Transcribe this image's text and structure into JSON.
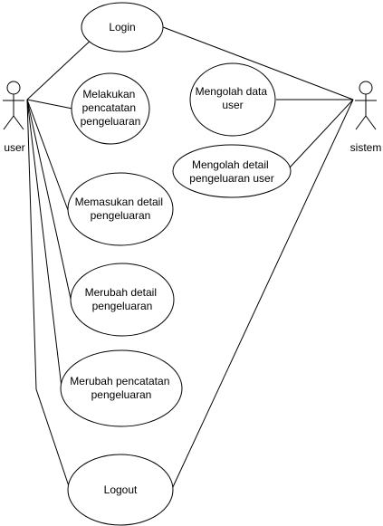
{
  "diagram": {
    "actors": {
      "user": {
        "label": "user"
      },
      "sistem": {
        "label": "sistem"
      }
    },
    "use_cases": {
      "login": {
        "lines": [
          "Login"
        ]
      },
      "melakukan": {
        "lines": [
          "Melakukan",
          "pencatatan",
          "pengeluaran"
        ]
      },
      "mengolah_data": {
        "lines": [
          "Mengolah data",
          "user"
        ]
      },
      "mengolah_detail": {
        "lines": [
          "Mengolah detail",
          "pengeluaran user"
        ]
      },
      "memasukan": {
        "lines": [
          "Memasukan detail",
          "pengeluaran"
        ]
      },
      "merubah_detail": {
        "lines": [
          "Merubah detail",
          "pengeluaran"
        ]
      },
      "merubah_pencatatan": {
        "lines": [
          "Merubah pencatatan",
          "pengeluaran"
        ]
      },
      "logout": {
        "lines": [
          "Logout"
        ]
      }
    },
    "associations": [
      [
        "user",
        "login"
      ],
      [
        "user",
        "melakukan"
      ],
      [
        "user",
        "memasukan"
      ],
      [
        "user",
        "merubah_detail"
      ],
      [
        "user",
        "merubah_pencatatan"
      ],
      [
        "user",
        "logout"
      ],
      [
        "sistem",
        "login"
      ],
      [
        "sistem",
        "mengolah_data"
      ],
      [
        "sistem",
        "mengolah_detail"
      ],
      [
        "sistem",
        "logout"
      ]
    ]
  }
}
